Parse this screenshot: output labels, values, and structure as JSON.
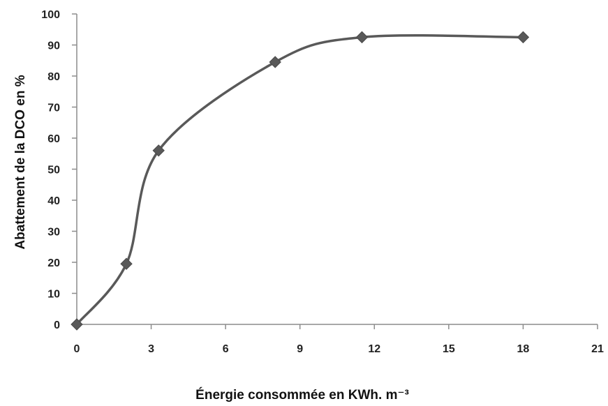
{
  "chart_data": {
    "type": "line",
    "xlabel": "Énergie consommée en KWh. m⁻³",
    "ylabel": "Abattement de la DCO en %",
    "xlim": [
      0,
      21
    ],
    "ylim": [
      0,
      100
    ],
    "x_ticks": [
      "0",
      "3",
      "6",
      "9",
      "12",
      "15",
      "18",
      "21"
    ],
    "y_ticks": [
      "0",
      "10",
      "20",
      "30",
      "40",
      "50",
      "60",
      "70",
      "80",
      "90",
      "100"
    ],
    "grid": false,
    "smooth": true,
    "marker": "diamond",
    "series": [
      {
        "x": [
          0,
          2,
          3.3,
          8,
          11.5,
          18
        ],
        "y": [
          0,
          19.5,
          56,
          84.5,
          92.5,
          92.5
        ]
      }
    ],
    "colors": {
      "line": "#595959",
      "marker": "#595959",
      "axis": "#8c8c8c"
    }
  }
}
